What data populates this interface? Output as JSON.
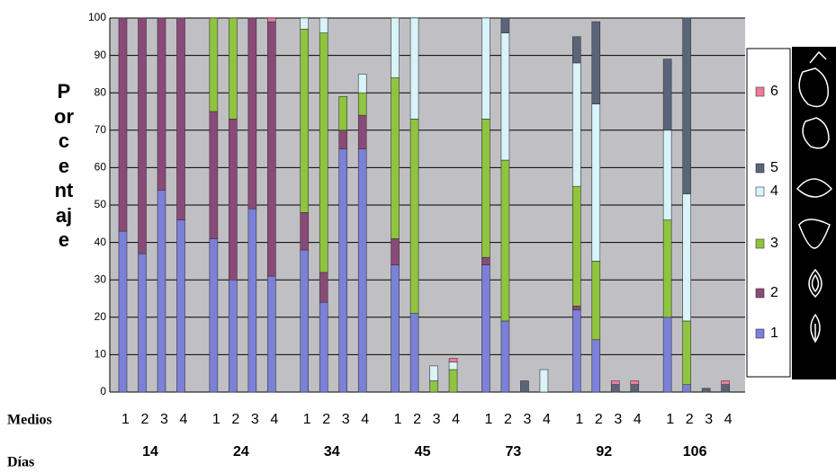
{
  "chart_data": {
    "type": "stacked_bar",
    "y_label": "Porcentaje",
    "x_label": "Medios",
    "group_axis_label": "Días",
    "groups": [
      "14",
      "24",
      "34",
      "45",
      "73",
      "92",
      "106"
    ],
    "categories": [
      "1",
      "2",
      "3",
      "4",
      "1",
      "2",
      "3",
      "4",
      "1",
      "2",
      "3",
      "4",
      "1",
      "2",
      "3",
      "4",
      "1",
      "2",
      "3",
      "4",
      "1",
      "2",
      "3",
      "4",
      "1",
      "2",
      "3",
      "4"
    ],
    "series": [
      {
        "name": "1",
        "color": "#7b80d8",
        "values": [
          43,
          37,
          54,
          46,
          41,
          30,
          49,
          31,
          38,
          24,
          65,
          65,
          34,
          21,
          0,
          0,
          34,
          19,
          0,
          0,
          22,
          14,
          0,
          0,
          20,
          2,
          0,
          0
        ]
      },
      {
        "name": "2",
        "color": "#8a4a78",
        "values": [
          57,
          63,
          46,
          54,
          34,
          43,
          51,
          68,
          10,
          8,
          5,
          9,
          7,
          0,
          0,
          0,
          2,
          0,
          0,
          0,
          1,
          0,
          0,
          0,
          0,
          0,
          0,
          0
        ]
      },
      {
        "name": "3",
        "color": "#8fc43f",
        "values": [
          0,
          0,
          0,
          0,
          25,
          27,
          0,
          0,
          49,
          64,
          9,
          6,
          43,
          52,
          3,
          6,
          37,
          43,
          0,
          0,
          32,
          21,
          0,
          0,
          26,
          17,
          0,
          0
        ]
      },
      {
        "name": "4",
        "color": "#d8f3fa",
        "values": [
          0,
          0,
          0,
          0,
          0,
          0,
          0,
          0,
          3,
          4,
          0,
          5,
          16,
          27,
          4,
          2,
          27,
          34,
          0,
          6,
          33,
          42,
          0,
          0,
          24,
          34,
          0,
          0
        ]
      },
      {
        "name": "5",
        "color": "#5b6579",
        "values": [
          0,
          0,
          0,
          0,
          0,
          0,
          0,
          0,
          0,
          0,
          0,
          0,
          0,
          0,
          0,
          0,
          0,
          4,
          3,
          0,
          7,
          22,
          2,
          2,
          19,
          47,
          1,
          2
        ]
      },
      {
        "name": "6",
        "color": "#f27a9b",
        "values": [
          0,
          0,
          0,
          0,
          0,
          0,
          0,
          1,
          0,
          0,
          0,
          0,
          0,
          0,
          0,
          1,
          0,
          0,
          0,
          0,
          0,
          0,
          1,
          1,
          0,
          0,
          0,
          1
        ]
      }
    ],
    "ylim": [
      0,
      100
    ],
    "yticks": [
      0,
      10,
      20,
      30,
      40,
      50,
      60,
      70,
      80,
      90,
      100
    ],
    "grid": true
  }
}
